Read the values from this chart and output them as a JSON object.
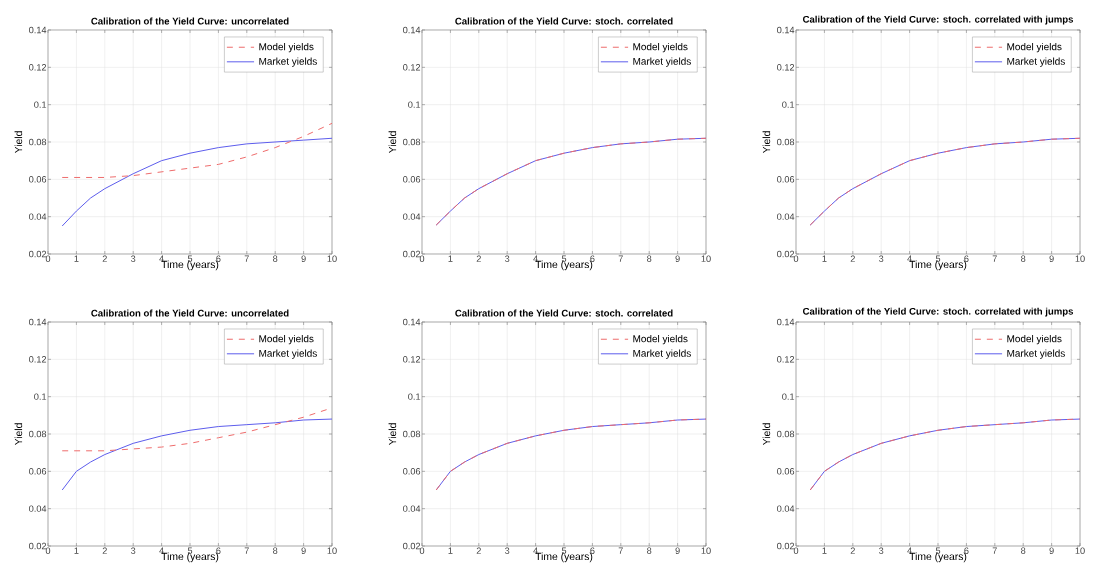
{
  "chart_data": [
    {
      "type": "line",
      "title": "Calibration of the Yield Curve: uncorrelated",
      "xlabel": "Time (years)",
      "ylabel": "Yield",
      "xlim": [
        0,
        10
      ],
      "ylim": [
        0.02,
        0.14
      ],
      "xticks": [
        0,
        1,
        2,
        3,
        4,
        5,
        6,
        7,
        8,
        9,
        10
      ],
      "yticks": [
        0.02,
        0.04,
        0.06,
        0.08,
        0.1,
        0.12,
        0.14
      ],
      "grid": true,
      "legend": "top right",
      "x": [
        0.5,
        1,
        1.5,
        2,
        3,
        4,
        5,
        6,
        7,
        8,
        9,
        10
      ],
      "series": [
        {
          "name": "Model yields",
          "color": "#ee6b6b",
          "line_style": "dashed",
          "values": [
            0.061,
            0.061,
            0.061,
            0.061,
            0.062,
            0.064,
            0.066,
            0.068,
            0.072,
            0.077,
            0.083,
            0.09
          ]
        },
        {
          "name": "Market yields",
          "color": "#5c5cec",
          "line_style": "solid",
          "values": [
            0.035,
            0.043,
            0.05,
            0.055,
            0.063,
            0.07,
            0.074,
            0.077,
            0.079,
            0.08,
            0.081,
            0.082
          ]
        }
      ]
    },
    {
      "type": "line",
      "title": "Calibration of the Yield Curve: stoch. correlated",
      "xlabel": "Time (years)",
      "ylabel": "Yield",
      "xlim": [
        0,
        10
      ],
      "ylim": [
        0.02,
        0.14
      ],
      "xticks": [
        0,
        1,
        2,
        3,
        4,
        5,
        6,
        7,
        8,
        9,
        10
      ],
      "yticks": [
        0.02,
        0.04,
        0.06,
        0.08,
        0.1,
        0.12,
        0.14
      ],
      "grid": true,
      "legend": "top right",
      "x": [
        0.5,
        1,
        1.5,
        2,
        3,
        4,
        5,
        6,
        7,
        8,
        9,
        10
      ],
      "series": [
        {
          "name": "Model yields",
          "color": "#ee6b6b",
          "line_style": "dashed",
          "values": [
            0.0355,
            0.043,
            0.05,
            0.055,
            0.063,
            0.07,
            0.074,
            0.077,
            0.079,
            0.08,
            0.0815,
            0.082
          ]
        },
        {
          "name": "Market yields",
          "color": "#5c5cec",
          "line_style": "solid",
          "values": [
            0.0355,
            0.043,
            0.05,
            0.055,
            0.063,
            0.07,
            0.074,
            0.077,
            0.079,
            0.08,
            0.0815,
            0.082
          ]
        }
      ]
    },
    {
      "type": "line",
      "title": "Calibration of the Yield Curve: stoch. correlated with jumps",
      "xlabel": "Time (years)",
      "ylabel": "Yield",
      "xlim": [
        0,
        10
      ],
      "ylim": [
        0.02,
        0.14
      ],
      "xticks": [
        0,
        1,
        2,
        3,
        4,
        5,
        6,
        7,
        8,
        9,
        10
      ],
      "yticks": [
        0.02,
        0.04,
        0.06,
        0.08,
        0.1,
        0.12,
        0.14
      ],
      "grid": true,
      "legend": "top right",
      "x": [
        0.5,
        1,
        1.5,
        2,
        3,
        4,
        5,
        6,
        7,
        8,
        9,
        10
      ],
      "series": [
        {
          "name": "Model yields",
          "color": "#ee6b6b",
          "line_style": "dashed",
          "values": [
            0.0355,
            0.043,
            0.05,
            0.055,
            0.063,
            0.07,
            0.074,
            0.077,
            0.079,
            0.08,
            0.0815,
            0.082
          ]
        },
        {
          "name": "Market yields",
          "color": "#5c5cec",
          "line_style": "solid",
          "values": [
            0.0355,
            0.043,
            0.05,
            0.055,
            0.063,
            0.07,
            0.074,
            0.077,
            0.079,
            0.08,
            0.0815,
            0.082
          ]
        }
      ]
    },
    {
      "type": "line",
      "title": "Calibration of the Yield Curve: uncorrelated",
      "xlabel": "Time (years)",
      "ylabel": "Yield",
      "xlim": [
        0,
        10
      ],
      "ylim": [
        0.02,
        0.14
      ],
      "xticks": [
        0,
        1,
        2,
        3,
        4,
        5,
        6,
        7,
        8,
        9,
        10
      ],
      "yticks": [
        0.02,
        0.04,
        0.06,
        0.08,
        0.1,
        0.12,
        0.14
      ],
      "grid": true,
      "legend": "top right",
      "x": [
        0.5,
        1,
        1.5,
        2,
        3,
        4,
        5,
        6,
        7,
        8,
        9,
        10
      ],
      "series": [
        {
          "name": "Model yields",
          "color": "#ee6b6b",
          "line_style": "dashed",
          "values": [
            0.071,
            0.071,
            0.071,
            0.071,
            0.072,
            0.073,
            0.075,
            0.078,
            0.081,
            0.085,
            0.089,
            0.094
          ]
        },
        {
          "name": "Market yields",
          "color": "#5c5cec",
          "line_style": "solid",
          "values": [
            0.05,
            0.06,
            0.065,
            0.069,
            0.075,
            0.079,
            0.082,
            0.084,
            0.085,
            0.086,
            0.0875,
            0.088
          ]
        }
      ]
    },
    {
      "type": "line",
      "title": "Calibration of the Yield Curve: stoch. correlated",
      "xlabel": "Time (years)",
      "ylabel": "Yield",
      "xlim": [
        0,
        10
      ],
      "ylim": [
        0.02,
        0.14
      ],
      "xticks": [
        0,
        1,
        2,
        3,
        4,
        5,
        6,
        7,
        8,
        9,
        10
      ],
      "yticks": [
        0.02,
        0.04,
        0.06,
        0.08,
        0.1,
        0.12,
        0.14
      ],
      "grid": true,
      "legend": "top right",
      "x": [
        0.5,
        1,
        1.5,
        2,
        3,
        4,
        5,
        6,
        7,
        8,
        9,
        10
      ],
      "series": [
        {
          "name": "Model yields",
          "color": "#ee6b6b",
          "line_style": "dashed",
          "values": [
            0.05,
            0.06,
            0.065,
            0.069,
            0.075,
            0.079,
            0.082,
            0.084,
            0.085,
            0.086,
            0.0875,
            0.088
          ]
        },
        {
          "name": "Market yields",
          "color": "#5c5cec",
          "line_style": "solid",
          "values": [
            0.05,
            0.06,
            0.065,
            0.069,
            0.075,
            0.079,
            0.082,
            0.084,
            0.085,
            0.086,
            0.0875,
            0.088
          ]
        }
      ]
    },
    {
      "type": "line",
      "title": "Calibration of the Yield Curve: stoch. correlated with jumps",
      "xlabel": "Time (years)",
      "ylabel": "Yield",
      "xlim": [
        0,
        10
      ],
      "ylim": [
        0.02,
        0.14
      ],
      "xticks": [
        0,
        1,
        2,
        3,
        4,
        5,
        6,
        7,
        8,
        9,
        10
      ],
      "yticks": [
        0.02,
        0.04,
        0.06,
        0.08,
        0.1,
        0.12,
        0.14
      ],
      "grid": true,
      "legend": "top right",
      "x": [
        0.5,
        1,
        1.5,
        2,
        3,
        4,
        5,
        6,
        7,
        8,
        9,
        10
      ],
      "series": [
        {
          "name": "Model yields",
          "color": "#ee6b6b",
          "line_style": "dashed",
          "values": [
            0.05,
            0.06,
            0.065,
            0.069,
            0.075,
            0.079,
            0.082,
            0.084,
            0.085,
            0.086,
            0.0875,
            0.088
          ]
        },
        {
          "name": "Market yields",
          "color": "#5c5cec",
          "line_style": "solid",
          "values": [
            0.05,
            0.06,
            0.065,
            0.069,
            0.075,
            0.079,
            0.082,
            0.084,
            0.085,
            0.086,
            0.0875,
            0.088
          ]
        }
      ]
    }
  ]
}
